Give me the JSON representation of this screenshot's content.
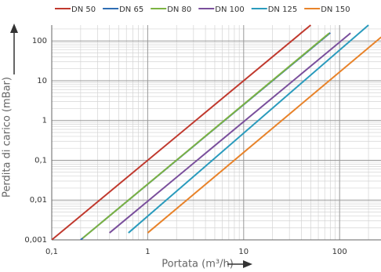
{
  "chart_data": {
    "type": "line",
    "x_label": "Portata  (m³/h)",
    "y_label": "Perdita di carico  (mBar)",
    "xscale": "log",
    "yscale": "log",
    "grid": true,
    "legend": "top",
    "xlim": [
      0.1,
      270
    ],
    "ylim": [
      0.001,
      250
    ],
    "xticks": [
      {
        "value": 0.1,
        "label": "0,1"
      },
      1,
      10,
      100
    ],
    "yticks": [
      {
        "value": 0.001,
        "label": "0,001"
      },
      {
        "value": 0.01,
        "label": "0,01"
      },
      {
        "value": 0.1,
        "label": "0,1"
      },
      1,
      10,
      100
    ],
    "series": [
      {
        "name": "DN 50",
        "color": "#c0392e",
        "x": [
          0.1,
          50
        ],
        "values": [
          0.001,
          250
        ]
      },
      {
        "name": "DN 65",
        "color": "#2f6db3",
        "x": [
          0.2,
          80
        ],
        "values": [
          0.001,
          160
        ]
      },
      {
        "name": "DN 80",
        "color": "#7cb342",
        "x": [
          0.21,
          78
        ],
        "values": [
          0.0011,
          157
        ]
      },
      {
        "name": "DN 100",
        "color": "#7a4f9c",
        "x": [
          0.4,
          130
        ],
        "values": [
          0.0015,
          157
        ]
      },
      {
        "name": "DN 125",
        "color": "#2a9bbd",
        "x": [
          0.63,
          200
        ],
        "values": [
          0.0015,
          250
        ]
      },
      {
        "name": "DN 150",
        "color": "#e8832a",
        "x": [
          1,
          272
        ],
        "values": [
          0.0015,
          125
        ]
      }
    ]
  }
}
